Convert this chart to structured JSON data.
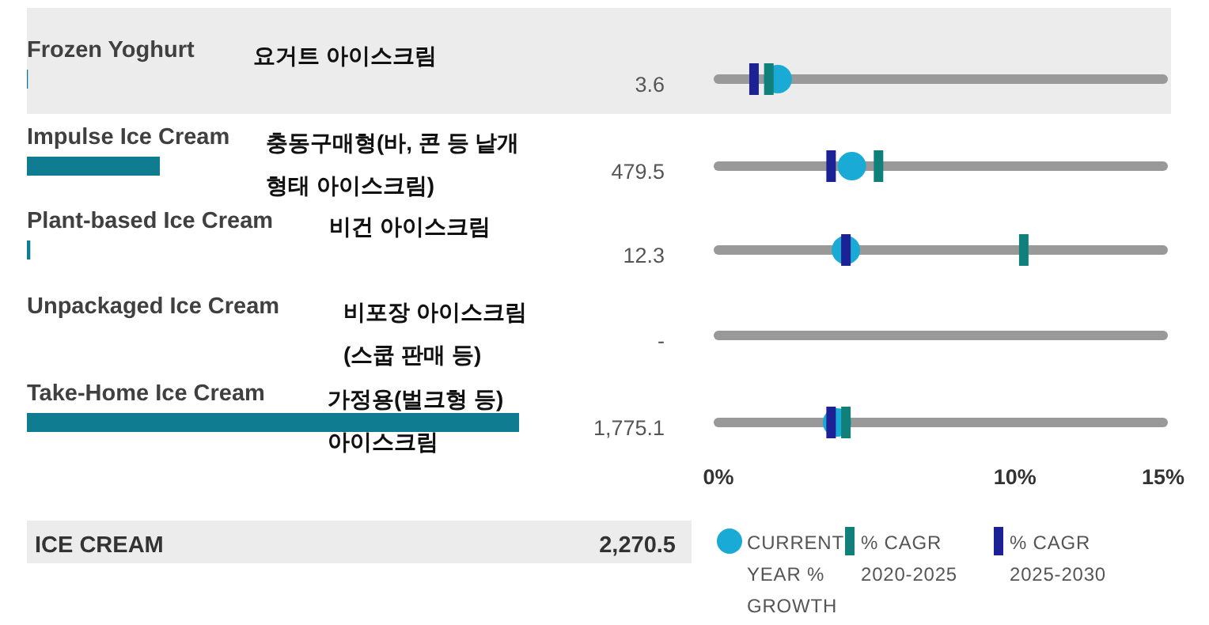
{
  "chart_data": [
    {
      "type": "bar",
      "orientation": "horizontal",
      "categories": [
        "Frozen Yoghurt",
        "Impulse Ice Cream",
        "Plant-based Ice Cream",
        "Unpackaged Ice Cream",
        "Take-Home Ice Cream"
      ],
      "values": [
        3.6,
        479.5,
        12.3,
        null,
        1775.1
      ],
      "value_labels": [
        "3.6",
        "479.5",
        "12.3",
        "-",
        "1,775.1"
      ],
      "color": "#0f7c91",
      "annotations": [
        "요거트 아이스크림",
        "충동구매형(바, 콘 등 낱개 형태 아이스크림)",
        "비건 아이스크림",
        "비포장 아이스크림 (스쿱 판매 등)",
        "가정용(벌크형 등) 아이스크림"
      ]
    },
    {
      "type": "scatter",
      "orientation": "horizontal",
      "categories": [
        null,
        null,
        null,
        null,
        null
      ],
      "xlim": [
        0,
        15
      ],
      "xticks": [
        {
          "value": 0,
          "label": "0%"
        },
        {
          "value": 10,
          "label": "10%"
        },
        {
          "value": 15,
          "label": "15%"
        }
      ],
      "tick_labels": "x",
      "grid": "y",
      "legend": "bottom",
      "series": [
        {
          "name": "CURRENT YEAR % GROWTH",
          "color": "#1aaad6",
          "marker": "circle",
          "values": [
            2.0,
            4.5,
            4.3,
            null,
            4.0
          ]
        },
        {
          "name": "% CAGR 2020-2025",
          "color": "#12807a",
          "marker": "square",
          "values": [
            1.7,
            5.4,
            10.3,
            null,
            4.3
          ]
        },
        {
          "name": "% CAGR 2025-2030",
          "color": "#1c2296",
          "marker": "square",
          "values": [
            1.2,
            3.8,
            4.3,
            null,
            3.8
          ]
        }
      ]
    },
    {
      "type": "other",
      "categories": [
        "ICE CREAM"
      ],
      "values": [
        2270.5
      ],
      "value_labels": [
        "2,270.5"
      ],
      "color": "#ececec"
    }
  ]
}
